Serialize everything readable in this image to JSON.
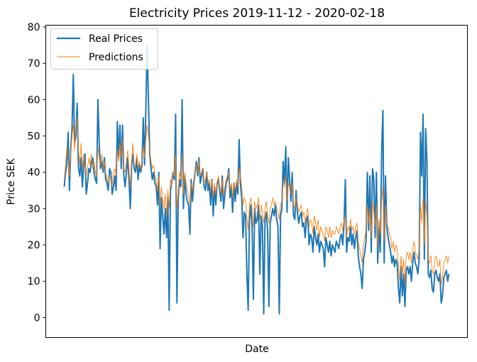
{
  "chart_data": {
    "type": "line",
    "title": "Electricity Prices 2019-11-12 - 2020-02-18",
    "xlabel": "Date",
    "ylabel": "Price SEK",
    "ylim": [
      -5.5,
      80.5
    ],
    "yticks": [
      0,
      10,
      20,
      30,
      40,
      50,
      60,
      70,
      80
    ],
    "xticks": [],
    "grid": false,
    "legend": {
      "placement": "top-left"
    },
    "series": [
      {
        "name": "Real Prices",
        "color": "#1f77b4",
        "values": [
          36,
          40,
          42,
          51,
          35,
          46,
          52,
          67,
          48,
          50,
          59,
          41,
          39,
          44,
          36,
          42,
          45,
          34,
          37,
          41,
          40,
          43,
          44,
          40,
          38,
          37,
          60,
          48,
          41,
          43,
          40,
          44,
          38,
          37,
          35,
          41,
          40,
          34,
          36,
          39,
          35,
          54,
          44,
          53,
          41,
          53,
          39,
          36,
          40,
          44,
          38,
          30,
          42,
          45,
          41,
          40,
          44,
          38,
          42,
          40,
          42,
          55,
          42,
          57,
          75,
          60,
          45,
          41,
          38,
          40,
          37,
          36,
          31,
          40,
          19,
          33,
          28,
          23,
          30,
          22,
          33,
          2,
          35,
          37,
          40,
          38,
          56,
          4,
          33,
          38,
          36,
          60,
          30,
          39,
          34,
          32,
          31,
          23,
          38,
          32,
          37,
          40,
          43,
          39,
          44,
          37,
          39,
          41,
          36,
          35,
          40,
          35,
          37,
          31,
          38,
          28,
          36,
          31,
          37,
          38,
          35,
          32,
          39,
          30,
          34,
          37,
          38,
          41,
          33,
          36,
          29,
          37,
          32,
          37,
          34,
          49,
          37,
          33,
          22,
          29,
          28,
          12,
          2,
          27,
          31,
          25,
          5,
          30,
          26,
          27,
          31,
          12,
          28,
          25,
          1,
          27,
          29,
          24,
          3,
          26,
          28,
          30,
          28,
          31,
          27,
          25,
          1,
          28,
          30,
          43,
          37,
          47,
          29,
          44,
          38,
          32,
          40,
          28,
          27,
          35,
          29,
          26,
          28,
          29,
          25,
          26,
          22,
          27,
          28,
          20,
          23,
          22,
          18,
          25,
          22,
          20,
          23,
          18,
          21,
          20,
          19,
          14,
          22,
          20,
          18,
          21,
          17,
          20,
          19,
          18,
          21,
          20,
          19,
          22,
          23,
          20,
          26,
          38,
          18,
          22,
          21,
          25,
          20,
          23,
          19,
          22,
          24,
          17,
          14,
          12,
          8,
          16,
          18,
          21,
          40,
          24,
          39,
          18,
          41,
          38,
          22,
          40,
          15,
          25,
          18,
          45,
          57,
          15,
          39,
          25,
          22,
          20,
          18,
          15,
          17,
          14,
          16,
          15,
          8,
          4,
          14,
          6,
          12,
          3,
          13,
          14,
          12,
          14,
          10,
          15,
          18,
          15,
          14,
          12,
          16,
          51,
          39,
          56,
          16,
          52,
          43,
          12,
          11,
          13,
          8,
          7,
          12,
          13,
          11,
          10,
          12,
          4,
          6,
          11,
          12,
          13,
          10,
          12
        ]
      },
      {
        "name": "Predictions",
        "color": "#ff7f0e",
        "values": [
          38,
          42,
          47,
          44,
          39,
          45,
          50,
          53,
          46,
          52,
          55,
          46,
          42,
          48,
          41,
          45,
          42,
          39,
          41,
          44,
          42,
          45,
          41,
          43,
          40,
          39,
          47,
          44,
          42,
          45,
          41,
          43,
          40,
          38,
          37,
          39,
          38,
          36,
          40,
          41,
          39,
          46,
          43,
          48,
          44,
          49,
          41,
          40,
          43,
          46,
          41,
          36,
          43,
          48,
          42,
          42,
          45,
          41,
          43,
          41,
          43,
          47,
          44,
          49,
          53,
          50,
          46,
          43,
          41,
          42,
          39,
          38,
          35,
          39,
          31,
          36,
          33,
          30,
          34,
          28,
          35,
          30,
          38,
          36,
          40,
          39,
          45,
          30,
          35,
          40,
          38,
          45,
          34,
          40,
          37,
          35,
          34,
          31,
          37,
          35,
          38,
          40,
          42,
          40,
          43,
          39,
          40,
          41,
          37,
          38,
          40,
          37,
          38,
          35,
          38,
          33,
          37,
          34,
          37,
          39,
          36,
          34,
          38,
          34,
          36,
          38,
          39,
          40,
          35,
          37,
          33,
          37,
          35,
          38,
          36,
          41,
          39,
          36,
          31,
          33,
          32,
          28,
          24,
          31,
          33,
          30,
          25,
          32,
          30,
          31,
          33,
          27,
          31,
          29,
          26,
          30,
          32,
          28,
          26,
          30,
          31,
          33,
          31,
          32,
          30,
          29,
          27,
          31,
          32,
          37,
          36,
          39,
          32,
          37,
          36,
          34,
          37,
          31,
          30,
          33,
          31,
          29,
          30,
          31,
          28,
          29,
          26,
          29,
          30,
          25,
          27,
          26,
          23,
          28,
          26,
          24,
          27,
          22,
          25,
          24,
          23,
          21,
          25,
          24,
          22,
          25,
          22,
          24,
          23,
          23,
          25,
          24,
          23,
          25,
          26,
          24,
          27,
          28,
          22,
          25,
          24,
          27,
          24,
          25,
          23,
          25,
          26,
          21,
          19,
          17,
          15,
          20,
          22,
          24,
          31,
          26,
          30,
          22,
          32,
          29,
          25,
          31,
          19,
          27,
          23,
          32,
          36,
          21,
          31,
          26,
          25,
          23,
          22,
          19,
          21,
          18,
          20,
          19,
          14,
          10,
          17,
          12,
          16,
          9,
          17,
          18,
          16,
          18,
          15,
          19,
          21,
          18,
          17,
          16,
          19,
          31,
          26,
          33,
          20,
          32,
          28,
          16,
          15,
          17,
          13,
          12,
          16,
          17,
          15,
          14,
          16,
          9,
          11,
          15,
          16,
          17,
          15,
          17
        ]
      }
    ]
  }
}
